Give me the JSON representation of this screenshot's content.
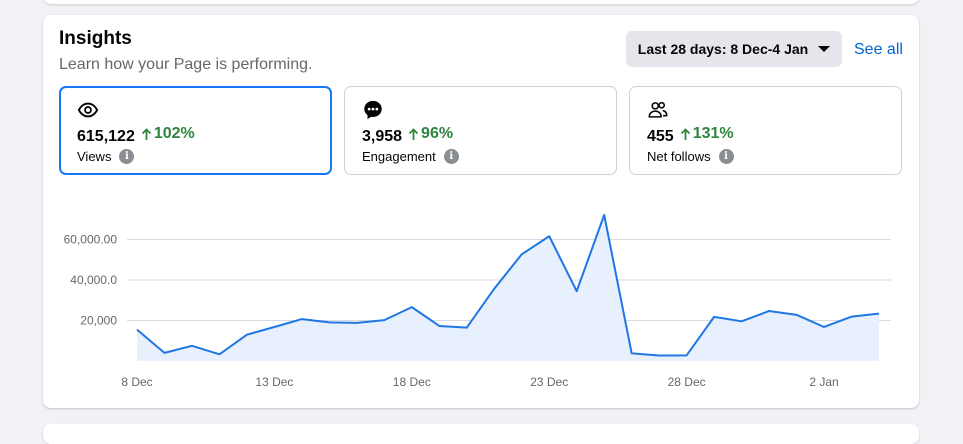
{
  "header": {
    "title": "Insights",
    "subtitle": "Learn how your Page is performing.",
    "date_range_label": "Last 28 days: 8 Dec-4 Jan",
    "see_all_label": "See all"
  },
  "metrics": [
    {
      "value": "615,122",
      "delta": "102%",
      "label": "Views",
      "icon": "eye-icon",
      "selected": true
    },
    {
      "value": "3,958",
      "delta": "96%",
      "label": "Engagement",
      "icon": "chat-bubble-icon",
      "selected": false
    },
    {
      "value": "455",
      "delta": "131%",
      "label": "Net follows",
      "icon": "people-icon",
      "selected": false
    }
  ],
  "colors": {
    "accent": "#1877f2",
    "line": "#1f77e6",
    "area": "#e7f0fc",
    "positive": "#2e8540"
  },
  "chart_data": {
    "type": "area",
    "title": "",
    "xlabel": "",
    "ylabel": "",
    "x_ticks": [
      "8 Dec",
      "13 Dec",
      "18 Dec",
      "23 Dec",
      "28 Dec",
      "2 Jan"
    ],
    "y_ticks": [
      "20,000",
      "40,000.0",
      "60,000.00"
    ],
    "y_tick_values": [
      20000,
      40000,
      60000
    ],
    "ylim": [
      0,
      70000
    ],
    "grid": true,
    "series": [
      {
        "dates": [
          "8 Dec",
          "9 Dec",
          "10 Dec",
          "11 Dec",
          "12 Dec",
          "13 Dec",
          "14 Dec",
          "15 Dec",
          "16 Dec",
          "17 Dec",
          "18 Dec",
          "19 Dec",
          "20 Dec",
          "21 Dec",
          "22 Dec",
          "23 Dec",
          "24 Dec",
          "25 Dec",
          "26 Dec",
          "27 Dec",
          "28 Dec",
          "29 Dec",
          "30 Dec",
          "31 Dec",
          "1 Jan",
          "2 Jan",
          "3 Jan",
          "4 Jan"
        ],
        "values": [
          15500,
          4000,
          7500,
          3300,
          13000,
          16800,
          20700,
          19100,
          18800,
          20200,
          26600,
          17300,
          16500,
          35700,
          52700,
          61600,
          34500,
          72100,
          3800,
          2700,
          2800,
          21800,
          19600,
          24700,
          22800,
          16800,
          21900,
          23400
        ]
      }
    ]
  }
}
